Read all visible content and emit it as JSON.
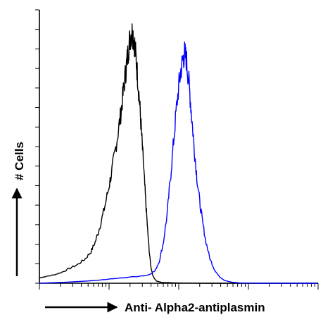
{
  "chart_data": {
    "type": "line",
    "title": "",
    "xlabel": "Anti- Alpha2-antiplasmin",
    "ylabel": "# Cells",
    "xlim": [
      0,
      1
    ],
    "ylim": [
      0,
      1
    ],
    "x_scale": "log",
    "grid": false,
    "legend": "none",
    "series": [
      {
        "color": "#000000",
        "points": [
          [
            0.0,
            0.02
          ],
          [
            0.02,
            0.024
          ],
          [
            0.05,
            0.03
          ],
          [
            0.08,
            0.04
          ],
          [
            0.11,
            0.055
          ],
          [
            0.14,
            0.07
          ],
          [
            0.165,
            0.09
          ],
          [
            0.185,
            0.115
          ],
          [
            0.2,
            0.15
          ],
          [
            0.215,
            0.2
          ],
          [
            0.23,
            0.26
          ],
          [
            0.245,
            0.33
          ],
          [
            0.258,
            0.4
          ],
          [
            0.27,
            0.47
          ],
          [
            0.282,
            0.55
          ],
          [
            0.292,
            0.62
          ],
          [
            0.3,
            0.69
          ],
          [
            0.308,
            0.76
          ],
          [
            0.314,
            0.81
          ],
          [
            0.32,
            0.86
          ],
          [
            0.326,
            0.9
          ],
          [
            0.331,
            0.92
          ],
          [
            0.336,
            0.91
          ],
          [
            0.341,
            0.88
          ],
          [
            0.346,
            0.83
          ],
          [
            0.352,
            0.76
          ],
          [
            0.358,
            0.68
          ],
          [
            0.364,
            0.59
          ],
          [
            0.37,
            0.49
          ],
          [
            0.376,
            0.39
          ],
          [
            0.382,
            0.29
          ],
          [
            0.388,
            0.2
          ],
          [
            0.394,
            0.12
          ],
          [
            0.4,
            0.06
          ],
          [
            0.408,
            0.025
          ],
          [
            0.42,
            0.008
          ],
          [
            0.44,
            0.003
          ],
          [
            0.5,
            0.001
          ],
          [
            0.6,
            0.0
          ],
          [
            1.0,
            0.0
          ]
        ]
      },
      {
        "color": "#0000ff",
        "points": [
          [
            0.0,
            0.0
          ],
          [
            0.1,
            0.004
          ],
          [
            0.2,
            0.01
          ],
          [
            0.28,
            0.018
          ],
          [
            0.34,
            0.024
          ],
          [
            0.39,
            0.03
          ],
          [
            0.415,
            0.045
          ],
          [
            0.43,
            0.08
          ],
          [
            0.445,
            0.15
          ],
          [
            0.458,
            0.25
          ],
          [
            0.47,
            0.38
          ],
          [
            0.48,
            0.5
          ],
          [
            0.49,
            0.62
          ],
          [
            0.5,
            0.72
          ],
          [
            0.508,
            0.78
          ],
          [
            0.515,
            0.82
          ],
          [
            0.521,
            0.84
          ],
          [
            0.527,
            0.82
          ],
          [
            0.534,
            0.76
          ],
          [
            0.541,
            0.68
          ],
          [
            0.548,
            0.59
          ],
          [
            0.556,
            0.49
          ],
          [
            0.565,
            0.39
          ],
          [
            0.575,
            0.3
          ],
          [
            0.586,
            0.22
          ],
          [
            0.598,
            0.15
          ],
          [
            0.612,
            0.09
          ],
          [
            0.628,
            0.05
          ],
          [
            0.645,
            0.025
          ],
          [
            0.665,
            0.01
          ],
          [
            0.69,
            0.004
          ],
          [
            0.72,
            0.001
          ],
          [
            0.8,
            0.0
          ],
          [
            1.0,
            0.0
          ]
        ]
      }
    ]
  }
}
